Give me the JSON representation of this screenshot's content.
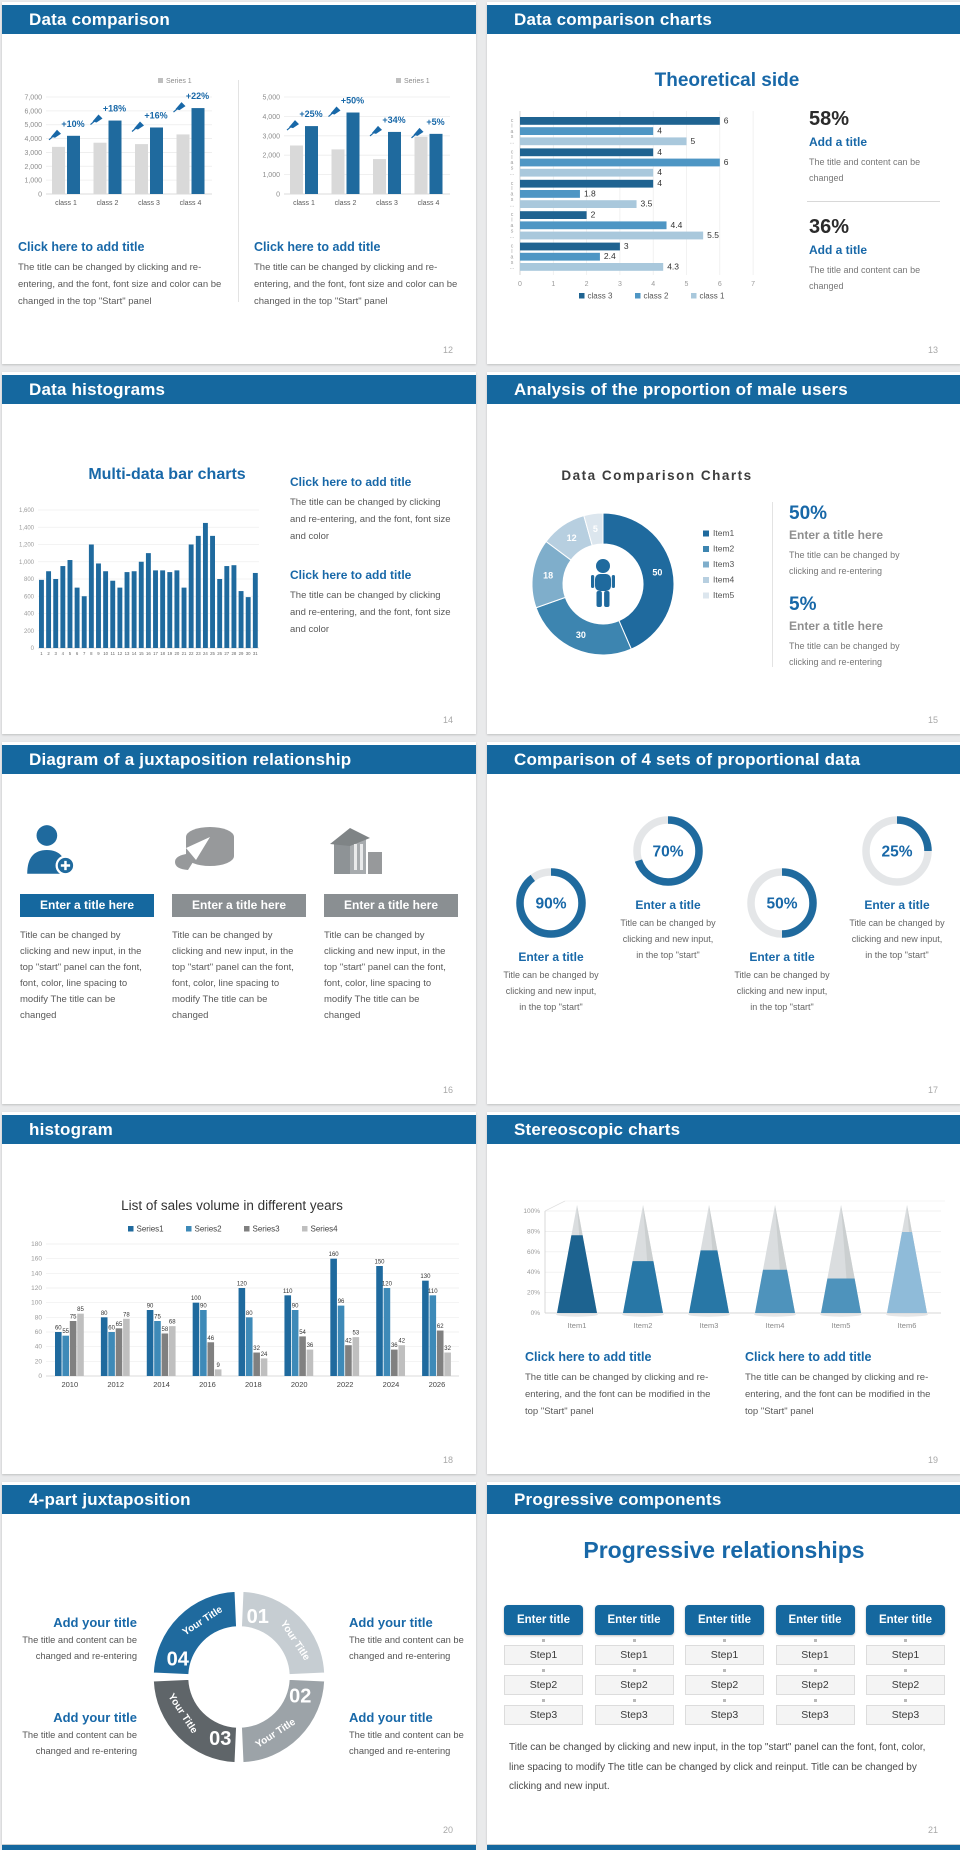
{
  "colors": {
    "header_blue": "#15689F",
    "accent_blue": "#1868A8",
    "bar_blue": "#1F6A9E",
    "bar_gray": "#D9D9D9",
    "hbar_colors": [
      "#1F6391",
      "#4E96C4",
      "#A9C8DC"
    ],
    "sales_colors": [
      "#1F6A9E",
      "#3E8AB8",
      "#808080",
      "#BFBFBF"
    ],
    "donut_colors": [
      "#1F6A9E",
      "#3D85B0",
      "#7FAECB",
      "#B7CFE0",
      "#DCE6EE"
    ],
    "quad_colors": [
      "#C6CDD2",
      "#9CA3A8",
      "#5F6569",
      "#1F6A9E"
    ],
    "cone_fill_colors": [
      "#1D6390",
      "#2877A6",
      "#2877A6",
      "#4E93BC",
      "#4E93BC",
      "#8FBBD9"
    ]
  },
  "slides": {
    "s12": {
      "header": "Data comparison",
      "page": "12",
      "legend": "Series 1",
      "charts": [
        {
          "type": "bar",
          "yticks": [
            "7,000",
            "6,000",
            "5,000",
            "4,000",
            "3,000",
            "2,000",
            "1,000",
            "0"
          ],
          "ymax": 7000,
          "categories": [
            "class 1",
            "class 2",
            "class 3",
            "class 4"
          ],
          "baseline": [
            3400,
            3700,
            3600,
            4300
          ],
          "highlight": [
            4200,
            5300,
            4800,
            6200
          ],
          "pct": [
            "+10%",
            "+18%",
            "+16%",
            "+22%"
          ]
        },
        {
          "type": "bar",
          "yticks": [
            "5,000",
            "4,000",
            "3,000",
            "2,000",
            "1,000",
            "0"
          ],
          "ymax": 5000,
          "categories": [
            "class 1",
            "class 2",
            "class 3",
            "class 4"
          ],
          "baseline": [
            2500,
            2300,
            1800,
            2950
          ],
          "highlight": [
            3500,
            4200,
            3200,
            3100
          ],
          "pct": [
            "+25%",
            "+50%",
            "+34%",
            "+5%"
          ]
        }
      ],
      "blocks": [
        {
          "title": "Click here to add title",
          "body": "The title can be changed by clicking and re-entering, and the font, font size and color can be changed in the top \"Start\" panel"
        },
        {
          "title": "Click here to add title",
          "body": "The title can be changed by clicking and re-entering, and the font, font size and color can be changed in the top \"Start\" panel"
        }
      ]
    },
    "s13": {
      "header": "Data comparison charts",
      "page": "13",
      "chart_title": "Theoretical side",
      "chart": {
        "type": "bar-horizontal",
        "group_label": "class…",
        "xticks": [
          "0",
          "1",
          "2",
          "3",
          "4",
          "5",
          "6",
          "7"
        ],
        "xmax": 7,
        "legend": [
          "class 3",
          "class 2",
          "class 1"
        ],
        "groups": [
          [
            6,
            4,
            5
          ],
          [
            4,
            6,
            4
          ],
          [
            4,
            1.8,
            3.5
          ],
          [
            2,
            4.4,
            5.5
          ],
          [
            3,
            2.4,
            4.3
          ]
        ]
      },
      "stats": [
        {
          "pct": "58%",
          "title": "Add a title",
          "body": "The title and content can be changed"
        },
        {
          "pct": "36%",
          "title": "Add a title",
          "body": "The title and content can be changed"
        }
      ]
    },
    "s14": {
      "header": "Data histograms",
      "page": "14",
      "chart_title": "Multi-data bar charts",
      "chart": {
        "type": "bar",
        "ymax": 1600,
        "yticks": [
          "1,600",
          "1,400",
          "1,200",
          "1,000",
          "800",
          "600",
          "400",
          "200",
          "0"
        ],
        "values": [
          790,
          890,
          800,
          950,
          1020,
          700,
          600,
          1200,
          980,
          890,
          780,
          700,
          880,
          890,
          1000,
          1100,
          900,
          900,
          880,
          900,
          700,
          1200,
          1300,
          1450,
          1300,
          800,
          950,
          960,
          660,
          590,
          870
        ],
        "xlabels": [
          "1",
          "2",
          "3",
          "4",
          "5",
          "6",
          "7",
          "8",
          "9",
          "10",
          "11",
          "12",
          "13",
          "14",
          "15",
          "16",
          "17",
          "18",
          "19",
          "20",
          "21",
          "22",
          "23",
          "24",
          "25",
          "26",
          "27",
          "28",
          "29",
          "30",
          "31"
        ]
      },
      "blocks": [
        {
          "title": "Click here to add title",
          "body": "The title can be changed by clicking and re-entering, and the font, font size and color"
        },
        {
          "title": "Click here to add title",
          "body": "The title can be changed by clicking and re-entering, and the font, font size and color"
        }
      ]
    },
    "s15": {
      "header": "Analysis of the proportion of male users",
      "page": "15",
      "chart_title": "Data Comparison Charts",
      "donut": {
        "type": "pie",
        "values": [
          50,
          30,
          18,
          12,
          5
        ],
        "legend": [
          "Item1",
          "Item2",
          "Item3",
          "Item4",
          "Item5"
        ],
        "center_icon": "male-person-icon"
      },
      "stats": [
        {
          "pct": "50%",
          "title": "Enter a title here",
          "body": "The title can be changed by clicking and re-entering"
        },
        {
          "pct": "5%",
          "title": "Enter a title here",
          "body": "The title can be changed by clicking and re-entering"
        }
      ]
    },
    "s16": {
      "header": "Diagram of a juxtaposition relationship",
      "page": "16",
      "items": [
        {
          "icon": "person-plus-icon",
          "title": "Enter a title here",
          "body": "Title can be changed by clicking and new input, in the top \"start\" panel can the font, font, color, line spacing to modify The title can be changed"
        },
        {
          "icon": "cake-chart-icon",
          "title": "Enter a title here",
          "body": "Title can be changed by clicking and new input, in the top \"start\" panel can the font, font, color, line spacing to modify The title can be changed"
        },
        {
          "icon": "building-icon",
          "title": "Enter a title here",
          "body": "Title can be changed by clicking and new input, in the top \"start\" panel can the font, font, color, line spacing to modify The title can be changed"
        }
      ]
    },
    "s17": {
      "header": "Comparison of 4 sets of proportional data",
      "page": "17",
      "items": [
        {
          "pct": 90,
          "label": "90%",
          "title": "Enter a title",
          "body": "Title can be changed by clicking and new input, in the top \"start\""
        },
        {
          "pct": 70,
          "label": "70%",
          "title": "Enter a title",
          "body": "Title can be changed by clicking and new input, in the top \"start\""
        },
        {
          "pct": 50,
          "label": "50%",
          "title": "Enter a title",
          "body": "Title can be changed by clicking and new input, in the top \"start\""
        },
        {
          "pct": 25,
          "label": "25%",
          "title": "Enter a title",
          "body": "Title can be changed by clicking and new input, in the top \"start\""
        }
      ]
    },
    "s18": {
      "header": "histogram",
      "page": "18",
      "chart_title": "List of sales volume in different years",
      "chart": {
        "type": "bar",
        "legend": [
          "Series1",
          "Series2",
          "Series3",
          "Series4"
        ],
        "years": [
          "2010",
          "2012",
          "2014",
          "2016",
          "2018",
          "2020",
          "2022",
          "2024",
          "2026"
        ],
        "ymax": 180,
        "yticks": [
          "180",
          "160",
          "140",
          "120",
          "100",
          "80",
          "60",
          "40",
          "20",
          "0"
        ],
        "series": [
          {
            "name": "Series1",
            "values": [
              60,
              80,
              90,
              100,
              120,
              110,
              160,
              150,
              130
            ]
          },
          {
            "name": "Series2",
            "values": [
              55,
              60,
              75,
              90,
              80,
              90,
              96,
              120,
              110
            ]
          },
          {
            "name": "Series3",
            "values": [
              75,
              65,
              58,
              46,
              32,
              54,
              42,
              36,
              62
            ]
          },
          {
            "name": "Series4",
            "values": [
              85,
              78,
              68,
              9,
              24,
              36,
              53,
              42,
              32
            ]
          }
        ]
      }
    },
    "s19": {
      "header": "Stereoscopic charts",
      "page": "19",
      "chart": {
        "type": "cone",
        "items": [
          "Item1",
          "Item2",
          "Item3",
          "Item4",
          "Item5",
          "Item6"
        ],
        "fill_pct": [
          72,
          48,
          58,
          40,
          32,
          75
        ],
        "yticks": [
          "0%",
          "20%",
          "40%",
          "60%",
          "80%",
          "100%"
        ]
      },
      "blocks": [
        {
          "title": "Click here to add title",
          "body": "The title can be changed by clicking and re-entering, and the font can be modified in the top \"Start\" panel"
        },
        {
          "title": "Click here to add title",
          "body": "The title can be changed by clicking and re-entering, and the font can be modified in the top \"Start\" panel"
        }
      ]
    },
    "s20": {
      "header": "4-part juxtaposition",
      "page": "20",
      "ring": {
        "nums": [
          "01",
          "02",
          "03",
          "04"
        ],
        "label": "Your Title"
      },
      "blocks": [
        {
          "title": "Add your title",
          "body": "The title and content can be changed and re-entering"
        },
        {
          "title": "Add your title",
          "body": "The title and content can be changed and re-entering"
        },
        {
          "title": "Add your title",
          "body": "The title and content can be changed and re-entering"
        },
        {
          "title": "Add your title",
          "body": "The title and content can be changed and re-entering"
        }
      ]
    },
    "s21": {
      "header": "Progressive components",
      "page": "21",
      "title": "Progressive relationships",
      "columns": [
        {
          "button": "Enter title",
          "steps": [
            "Step1",
            "Step2",
            "Step3"
          ]
        },
        {
          "button": "Enter title",
          "steps": [
            "Step1",
            "Step2",
            "Step3"
          ]
        },
        {
          "button": "Enter title",
          "steps": [
            "Step1",
            "Step2",
            "Step3"
          ]
        },
        {
          "button": "Enter title",
          "steps": [
            "Step1",
            "Step2",
            "Step3"
          ]
        },
        {
          "button": "Enter title",
          "steps": [
            "Step1",
            "Step2",
            "Step3"
          ]
        }
      ],
      "body": "Title can be changed by clicking and new input, in the top \"start\" panel can the font, font, color, line spacing to modify The title can be changed by click and reinput. Title can be changed by clicking and new input."
    }
  }
}
